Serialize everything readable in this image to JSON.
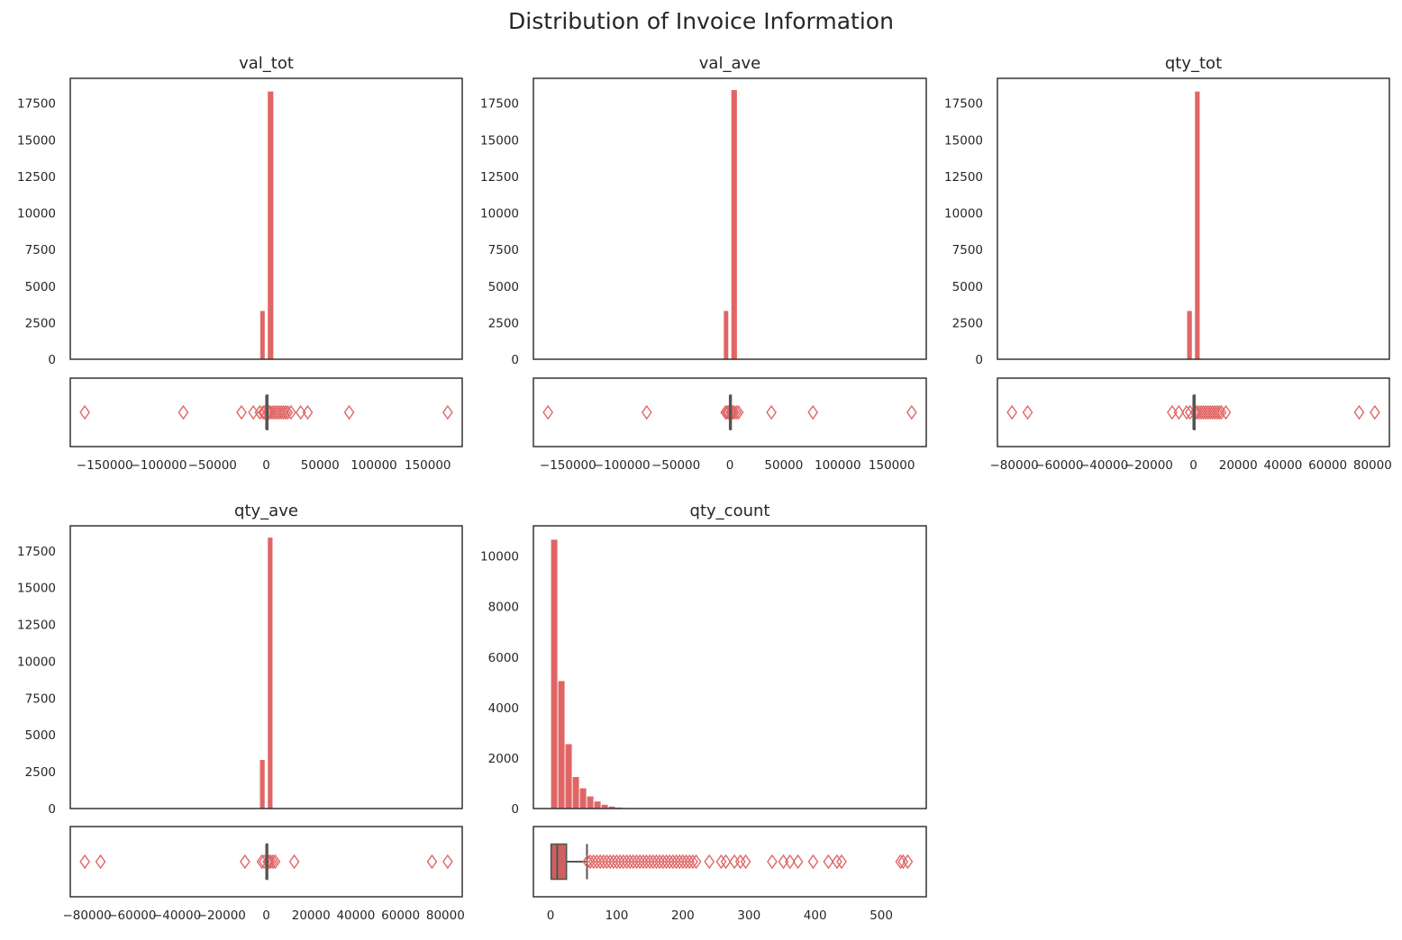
{
  "figure": {
    "title": "Distribution of Invoice Information",
    "bar_color": "#e06666",
    "frame_color": "#262626",
    "box_line_color": "#555555"
  },
  "chart_data": [
    {
      "id": "val_tot",
      "title": "val_tot",
      "type": "histogram+boxplot",
      "xlim": [
        -182000,
        182000
      ],
      "ylim": [
        0,
        19200
      ],
      "x_ticks": [
        -150000,
        -100000,
        -50000,
        0,
        50000,
        100000,
        150000
      ],
      "x_tick_labels": [
        "−150000",
        "−100000",
        "−50000",
        "0",
        "50000",
        "100000",
        "150000"
      ],
      "y_ticks": [
        0,
        2500,
        5000,
        7500,
        10000,
        12500,
        15000,
        17500
      ],
      "y_tick_labels": [
        "0",
        "2500",
        "5000",
        "7500",
        "10000",
        "12500",
        "15000",
        "17500"
      ],
      "bins": [
        {
          "x0": -6000,
          "x1": -1000,
          "count": 3300
        },
        {
          "x0": 1000,
          "x1": 7000,
          "count": 18300
        }
      ],
      "box": {
        "q1": 150,
        "median": 300,
        "q3": 500,
        "whisker_low": -100,
        "whisker_high": 1000,
        "fliers": [
          -168500,
          -77000,
          -23000,
          -12000,
          -6000,
          -3000,
          -1500,
          1200,
          2500,
          4000,
          6000,
          8000,
          10000,
          12000,
          14000,
          16000,
          18000,
          20000,
          23000,
          32000,
          38500,
          77000,
          168500
        ]
      }
    },
    {
      "id": "val_ave",
      "title": "val_ave",
      "type": "histogram+boxplot",
      "xlim": [
        -182000,
        182000
      ],
      "ylim": [
        0,
        19200
      ],
      "x_ticks": [
        -150000,
        -100000,
        -50000,
        0,
        50000,
        100000,
        150000
      ],
      "x_tick_labels": [
        "−150000",
        "−100000",
        "−50000",
        "0",
        "50000",
        "100000",
        "150000"
      ],
      "y_ticks": [
        0,
        2500,
        5000,
        7500,
        10000,
        12500,
        15000,
        17500
      ],
      "y_tick_labels": [
        "0",
        "2500",
        "5000",
        "7500",
        "10000",
        "12500",
        "15000",
        "17500"
      ],
      "bins": [
        {
          "x0": -6000,
          "x1": -1000,
          "count": 3300
        },
        {
          "x0": 1000,
          "x1": 7000,
          "count": 18400
        }
      ],
      "box": {
        "q1": 30,
        "median": 100,
        "q3": 300,
        "whisker_low": -50,
        "whisker_high": 600,
        "fliers": [
          -168500,
          -77000,
          -4000,
          -2500,
          -1200,
          800,
          1500,
          2500,
          4000,
          6000,
          8000,
          38500,
          77000,
          168500
        ]
      }
    },
    {
      "id": "qty_tot",
      "title": "qty_tot",
      "type": "histogram+boxplot",
      "xlim": [
        -87500,
        87500
      ],
      "ylim": [
        0,
        19200
      ],
      "x_ticks": [
        -80000,
        -60000,
        -40000,
        -20000,
        0,
        20000,
        40000,
        60000,
        80000
      ],
      "x_tick_labels": [
        "−80000",
        "−60000",
        "−40000",
        "−20000",
        "0",
        "20000",
        "40000",
        "60000",
        "80000"
      ],
      "y_ticks": [
        0,
        2500,
        5000,
        7500,
        10000,
        12500,
        15000,
        17500
      ],
      "y_tick_labels": [
        "0",
        "2500",
        "5000",
        "7500",
        "10000",
        "12500",
        "15000",
        "17500"
      ],
      "bins": [
        {
          "x0": -3000,
          "x1": -500,
          "count": 3300
        },
        {
          "x0": 500,
          "x1": 3000,
          "count": 18300
        }
      ],
      "box": {
        "q1": 60,
        "median": 150,
        "q3": 300,
        "whisker_low": -30,
        "whisker_high": 600,
        "fliers": [
          -81000,
          -74000,
          -9500,
          -6500,
          -3000,
          -1500,
          800,
          1500,
          2500,
          3500,
          4500,
          5500,
          6500,
          7500,
          8500,
          9500,
          10500,
          11500,
          12500,
          14500,
          74000,
          81000
        ]
      }
    },
    {
      "id": "qty_ave",
      "title": "qty_ave",
      "type": "histogram+boxplot",
      "xlim": [
        -87500,
        87500
      ],
      "ylim": [
        0,
        19200
      ],
      "x_ticks": [
        -80000,
        -60000,
        -40000,
        -20000,
        0,
        20000,
        40000,
        60000,
        80000
      ],
      "x_tick_labels": [
        "−80000",
        "−60000",
        "−40000",
        "−20000",
        "0",
        "20000",
        "40000",
        "60000",
        "80000"
      ],
      "y_ticks": [
        0,
        2500,
        5000,
        7500,
        10000,
        12500,
        15000,
        17500
      ],
      "y_tick_labels": [
        "0",
        "2500",
        "5000",
        "7500",
        "10000",
        "12500",
        "15000",
        "17500"
      ],
      "bins": [
        {
          "x0": -3000,
          "x1": -500,
          "count": 3300
        },
        {
          "x0": 500,
          "x1": 3000,
          "count": 18400
        }
      ],
      "box": {
        "q1": 10,
        "median": 40,
        "q3": 100,
        "whisker_low": -10,
        "whisker_high": 250,
        "fliers": [
          -81000,
          -74000,
          -9500,
          -2000,
          -1000,
          600,
          1200,
          2000,
          3000,
          4000,
          12500,
          74000,
          81000
        ]
      }
    },
    {
      "id": "qty_count",
      "title": "qty_count",
      "type": "histogram+boxplot",
      "xlim": [
        -26,
        568
      ],
      "ylim": [
        0,
        11200
      ],
      "x_ticks": [
        0,
        100,
        200,
        300,
        400,
        500
      ],
      "x_tick_labels": [
        "0",
        "100",
        "200",
        "300",
        "400",
        "500"
      ],
      "y_ticks": [
        0,
        2000,
        4000,
        6000,
        8000,
        10000
      ],
      "y_tick_labels": [
        "0",
        "2000",
        "4000",
        "6000",
        "8000",
        "10000"
      ],
      "bins": [
        {
          "x0": 0,
          "x1": 10.9,
          "count": 10650
        },
        {
          "x0": 10.9,
          "x1": 21.8,
          "count": 5050
        },
        {
          "x0": 21.8,
          "x1": 32.7,
          "count": 2550
        },
        {
          "x0": 32.7,
          "x1": 43.6,
          "count": 1250
        },
        {
          "x0": 43.6,
          "x1": 54.5,
          "count": 800
        },
        {
          "x0": 54.5,
          "x1": 65.4,
          "count": 480
        },
        {
          "x0": 65.4,
          "x1": 76.3,
          "count": 280
        },
        {
          "x0": 76.3,
          "x1": 87.2,
          "count": 150
        },
        {
          "x0": 87.2,
          "x1": 98.1,
          "count": 80
        },
        {
          "x0": 98.1,
          "x1": 109,
          "count": 40
        },
        {
          "x0": 109,
          "x1": 119.9,
          "count": 20
        },
        {
          "x0": 119.9,
          "x1": 130.8,
          "count": 10
        }
      ],
      "box": {
        "q1": 1,
        "median": 10,
        "q3": 24,
        "whisker_low": 1,
        "whisker_high": 55,
        "fliers": [
          56,
          60,
          65,
          70,
          75,
          80,
          85,
          90,
          95,
          100,
          105,
          110,
          115,
          120,
          125,
          130,
          135,
          140,
          145,
          150,
          155,
          160,
          165,
          170,
          175,
          180,
          185,
          190,
          195,
          200,
          205,
          210,
          215,
          220,
          240,
          258,
          265,
          278,
          287,
          295,
          335,
          352,
          362,
          374,
          397,
          420,
          433,
          440,
          529,
          533,
          540
        ]
      }
    }
  ]
}
